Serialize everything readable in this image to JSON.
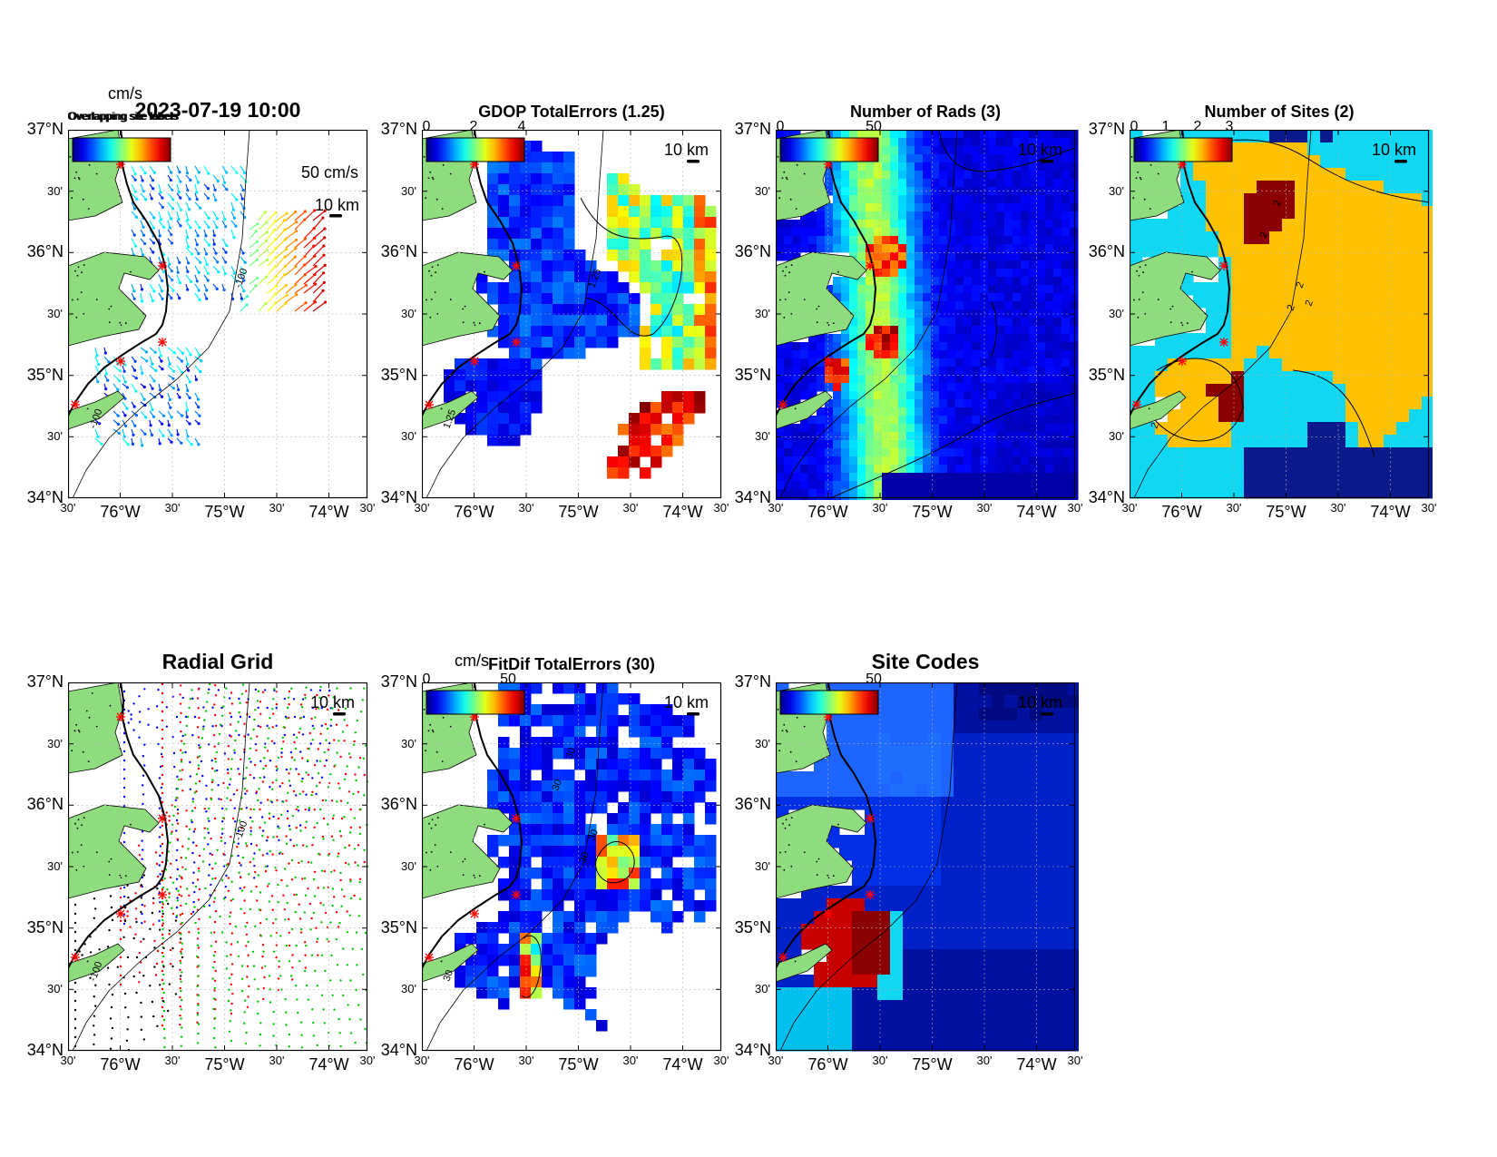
{
  "figure": {
    "timestamp": "2023-07-19 10:00",
    "vector_scale_label": "50 cm/s",
    "units_label": "cm/s",
    "scale_bar_label": "10 km",
    "overlap_text": "Overlapping site labels"
  },
  "axes": {
    "y_major": [
      "37°N",
      "36°N",
      "35°N",
      "34°N"
    ],
    "y_minor": "30'",
    "x_major": [
      "76°W",
      "75°W",
      "74°W"
    ],
    "x_minor": "30'",
    "lat_range": [
      34,
      37
    ],
    "lon_range": [
      -76.5,
      -73.5
    ]
  },
  "panels": [
    {
      "id": "surface-currents",
      "title": "",
      "colorbar_ticks": [],
      "contours": [
        "-100",
        "-100"
      ],
      "map_type": "vectors"
    },
    {
      "id": "gdop",
      "title": "GDOP TotalErrors (1.25)",
      "colorbar_ticks": [
        "0",
        "2",
        "4"
      ],
      "contours": [
        "1.25",
        "1.25"
      ],
      "map_type": "gdop"
    },
    {
      "id": "rads",
      "title": "Number of Rads (3)",
      "colorbar_ticks": [
        "0",
        "50"
      ],
      "contours": [],
      "map_type": "rads"
    },
    {
      "id": "sites",
      "title": "Number of Sites (2)",
      "colorbar_ticks": [
        "0",
        "1",
        "2",
        "3"
      ],
      "contours": [
        "2",
        "2",
        "2",
        "2",
        "2",
        "2"
      ],
      "map_type": "sites"
    },
    {
      "id": "radial-grid",
      "title": "Radial Grid",
      "colorbar_ticks": [],
      "contours": [
        "-100",
        "-100"
      ],
      "map_type": "radial"
    },
    {
      "id": "fitdif",
      "title": "FitDif TotalErrors (30)",
      "colorbar_ticks": [
        "0",
        "50"
      ],
      "contours": [
        "30",
        "30",
        "30",
        "30",
        "30"
      ],
      "map_type": "fitdif"
    },
    {
      "id": "site-codes",
      "title": "Site Codes",
      "colorbar_ticks": [
        "50"
      ],
      "contours": [],
      "map_type": "codes"
    }
  ],
  "colors": {
    "land": "#8fdc7e",
    "coast": "#000000",
    "site_marker": "#ff0000",
    "radial_sites": [
      "#0000ff",
      "#ff0000",
      "#00c800",
      "#ff0000",
      "#000000"
    ]
  }
}
